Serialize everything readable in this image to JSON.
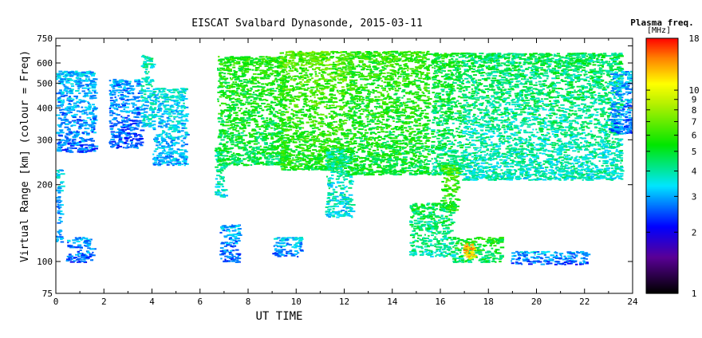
{
  "chart_data": {
    "type": "heatmap",
    "title": "EISCAT Svalbard Dynasonde, 2015-03-11",
    "xlabel": "UT TIME",
    "ylabel": "Virtual Range [km] (colour = Freq)",
    "xlim": [
      0,
      24
    ],
    "ylim": [
      75,
      750
    ],
    "y_scale": "log",
    "x_ticks": [
      0,
      2,
      4,
      6,
      8,
      10,
      12,
      14,
      16,
      18,
      20,
      22,
      24
    ],
    "y_ticks": [
      75,
      100,
      200,
      300,
      400,
      500,
      600,
      700,
      750
    ],
    "y_tick_labels": [
      "75",
      "100",
      "200",
      "300",
      "400",
      "500",
      "600",
      "",
      "750"
    ],
    "colorbar": {
      "title": "Plasma freq.",
      "unit": "[MHz]",
      "scale": "log",
      "range": [
        1,
        18
      ],
      "ticks": [
        1,
        2,
        3,
        4,
        5,
        6,
        7,
        8,
        9,
        10,
        18
      ]
    },
    "regions": [
      {
        "x": [
          0.0,
          1.6
        ],
        "y": [
          270,
          560
        ],
        "f": 3.2
      },
      {
        "x": [
          0.0,
          0.2
        ],
        "y": [
          120,
          230
        ],
        "f": 3.3
      },
      {
        "x": [
          0.4,
          1.5
        ],
        "y": [
          100,
          125
        ],
        "f": 3.0
      },
      {
        "x": [
          2.2,
          3.5
        ],
        "y": [
          280,
          520
        ],
        "f": 3.0
      },
      {
        "x": [
          3.5,
          4.0
        ],
        "y": [
          340,
          650
        ],
        "f": 4.0
      },
      {
        "x": [
          4.0,
          5.4
        ],
        "y": [
          240,
          480
        ],
        "f": 3.6
      },
      {
        "x": [
          6.6,
          7.0
        ],
        "y": [
          180,
          280
        ],
        "f": 4.5
      },
      {
        "x": [
          6.8,
          7.6
        ],
        "y": [
          100,
          140
        ],
        "f": 3.1
      },
      {
        "x": [
          6.7,
          9.5
        ],
        "y": [
          240,
          640
        ],
        "f": 5.8
      },
      {
        "x": [
          9.0,
          10.2
        ],
        "y": [
          105,
          125
        ],
        "f": 3.3
      },
      {
        "x": [
          9.3,
          12.0
        ],
        "y": [
          230,
          670
        ],
        "f": 6.6
      },
      {
        "x": [
          11.2,
          12.3
        ],
        "y": [
          150,
          280
        ],
        "f": 4.2
      },
      {
        "x": [
          12.0,
          15.5
        ],
        "y": [
          220,
          670
        ],
        "f": 6.0
      },
      {
        "x": [
          14.7,
          16.5
        ],
        "y": [
          105,
          170
        ],
        "f": 4.8
      },
      {
        "x": [
          15.6,
          16.9
        ],
        "y": [
          220,
          660
        ],
        "f": 5.2
      },
      {
        "x": [
          16.0,
          16.7
        ],
        "y": [
          160,
          240
        ],
        "f": 6.5
      },
      {
        "x": [
          16.5,
          18.5
        ],
        "y": [
          100,
          125
        ],
        "f": 5.5
      },
      {
        "x": [
          16.9,
          17.4
        ],
        "y": [
          103,
          118
        ],
        "f": 14.0
      },
      {
        "x": [
          16.9,
          23.5
        ],
        "y": [
          210,
          660
        ],
        "f": 4.6
      },
      {
        "x": [
          18.9,
          22.1
        ],
        "y": [
          98,
          110
        ],
        "f": 3.1
      },
      {
        "x": [
          23.0,
          24.0
        ],
        "y": [
          320,
          560
        ],
        "f": 3.2
      }
    ]
  }
}
